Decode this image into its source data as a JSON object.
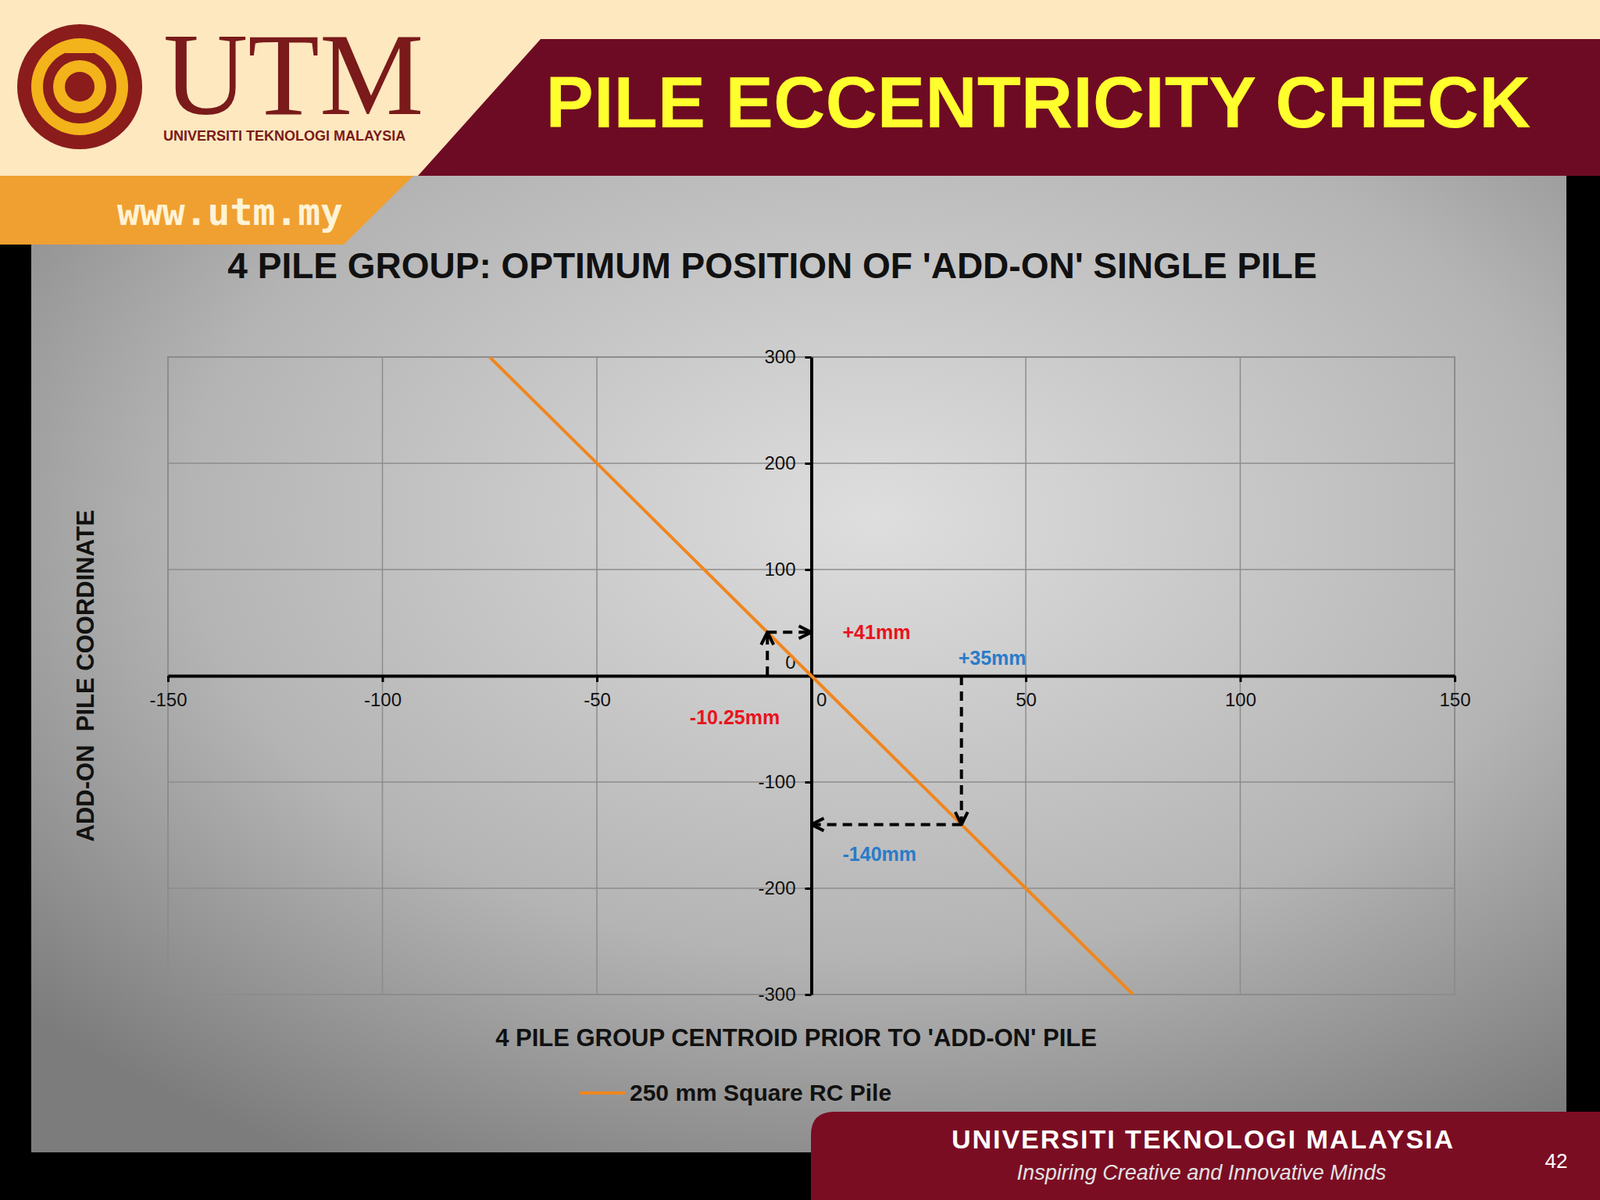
{
  "chart_data": {
    "type": "line",
    "title": "4 PILE GROUP: OPTIMUM POSITION OF 'ADD-ON' SINGLE PILE",
    "x_label": "4 PILE GROUP CENTROID PRIOR TO 'ADD-ON' PILE",
    "y_label": "ADD-ON  PILE COORDINATE",
    "x": [
      -75,
      -10.25,
      0,
      35,
      75
    ],
    "series": [
      {
        "name": "250 mm Square RC Pile",
        "color": "#f0861e",
        "values": [
          300,
          41,
          0,
          -140,
          -300
        ]
      }
    ],
    "xlim": [
      -150,
      150
    ],
    "xticks": [
      -150,
      -100,
      -50,
      0,
      50,
      100,
      150
    ],
    "ylim": [
      -300,
      300
    ],
    "yticks": [
      -300,
      -200,
      -100,
      0,
      100,
      200,
      300
    ],
    "grid": true,
    "legend": "bottom",
    "annotations": [
      {
        "x": -10.25,
        "y": 41,
        "x_label": "-10.25mm",
        "y_label": "+41mm",
        "color": "#e8141c"
      },
      {
        "x": 35,
        "y": -140,
        "x_label": "+35mm",
        "y_label": "-140mm",
        "color": "#2a7bc8"
      }
    ]
  },
  "slide": {
    "header": "PILE ECCENTRICITY CHECK",
    "logo_text": "UTM",
    "logo_subtitle": "UNIVERSITI TEKNOLOGI MALAYSIA",
    "website": "www.utm.my",
    "footer_title": "UNIVERSITI TEKNOLOGI MALAYSIA",
    "footer_tagline": "Inspiring Creative and Innovative Minds",
    "page_number": 42
  }
}
